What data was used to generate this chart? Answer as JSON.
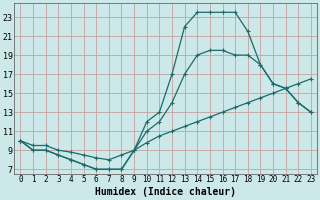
{
  "xlabel": "Humidex (Indice chaleur)",
  "bg_color": "#cce8e8",
  "line_color": "#1a6b6b",
  "grid_color": "#c8a0a0",
  "xlim": [
    -0.5,
    23.5
  ],
  "ylim": [
    6.5,
    24.5
  ],
  "xticks": [
    0,
    1,
    2,
    3,
    4,
    5,
    6,
    7,
    8,
    9,
    10,
    11,
    12,
    13,
    14,
    15,
    16,
    17,
    18,
    19,
    20,
    21,
    22,
    23
  ],
  "yticks": [
    7,
    9,
    11,
    13,
    15,
    17,
    19,
    21,
    23
  ],
  "line1_x": [
    0,
    1,
    2,
    3,
    4,
    5,
    6,
    7,
    8,
    9,
    10,
    11,
    12,
    13,
    14,
    15,
    16,
    17,
    18,
    19,
    20,
    21,
    22,
    23
  ],
  "line1_y": [
    10,
    9,
    9,
    8.5,
    8,
    7.5,
    7,
    7,
    7,
    9,
    11,
    12,
    14,
    17,
    19,
    19.5,
    19.5,
    19,
    19,
    18,
    16,
    15.5,
    14,
    13
  ],
  "line2_x": [
    0,
    1,
    2,
    3,
    4,
    5,
    6,
    7,
    8,
    9,
    10,
    11,
    12,
    13,
    14,
    15,
    16,
    17,
    18,
    19,
    20,
    21,
    22,
    23
  ],
  "line2_y": [
    10,
    9,
    9,
    8.5,
    8,
    7.5,
    7,
    7,
    7,
    9,
    12,
    13,
    17,
    22,
    23.5,
    23.5,
    23.5,
    23.5,
    21.5,
    18,
    16,
    15.5,
    14,
    13
  ],
  "line3_x": [
    0,
    1,
    2,
    3,
    4,
    5,
    6,
    7,
    8,
    9,
    10,
    11,
    12,
    13,
    14,
    15,
    16,
    17,
    18,
    19,
    20,
    21,
    22,
    23
  ],
  "line3_y": [
    10,
    9.5,
    9.5,
    9,
    8.8,
    8.5,
    8.2,
    8,
    8.5,
    9,
    9.8,
    10.5,
    11,
    11.5,
    12,
    12.5,
    13,
    13.5,
    14,
    14.5,
    15,
    15.5,
    16,
    16.5
  ],
  "xlabel_fontsize": 7,
  "tick_fontsize": 5.5
}
